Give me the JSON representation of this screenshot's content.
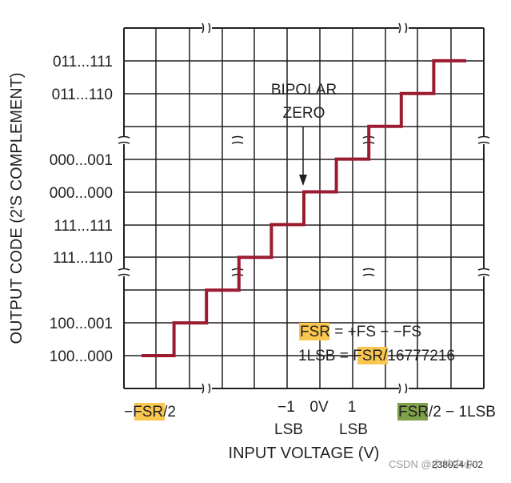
{
  "chart_data": {
    "type": "line",
    "subtype": "step",
    "title": "",
    "xlabel": "INPUT VOLTAGE (V)",
    "ylabel": "OUTPUT CODE (2'S COMPLEMENT)",
    "colors": {
      "transfer": "#9b1b30",
      "grid": "#231f20",
      "highlight": "#f9c74f",
      "highlight_green": "#7ea14a"
    },
    "y_tick_labels": [
      "100...000",
      "100...001",
      "111...110",
      "111...111",
      "000...000",
      "000...001",
      "011...110",
      "011...111"
    ],
    "x_tick_labels": {
      "left": {
        "highlight": "FSR",
        "prefix": "−",
        "suffix": "/2"
      },
      "minus_one_top": "−1",
      "minus_one_bottom": "LSB",
      "zero": "0V",
      "plus_one_top": "1",
      "plus_one_bottom": "LSB",
      "right": {
        "highlight": "FSR",
        "suffix": "/2 − 1LSB"
      }
    },
    "series": [
      {
        "values": [
          {
            "x": 0,
            "y": 0
          },
          {
            "x": 1,
            "y": 0
          },
          {
            "x": 1,
            "y": 1
          },
          {
            "x": 2,
            "y": 1
          },
          {
            "x": 2,
            "y": 2
          },
          {
            "x": 3,
            "y": 2
          },
          {
            "x": 3,
            "y": 3
          },
          {
            "x": 4,
            "y": 3
          },
          {
            "x": 4,
            "y": 4
          },
          {
            "x": 5,
            "y": 4
          },
          {
            "x": 5,
            "y": 5
          },
          {
            "x": 6,
            "y": 5
          },
          {
            "x": 6,
            "y": 6
          },
          {
            "x": 7,
            "y": 6
          },
          {
            "x": 7,
            "y": 7
          },
          {
            "x": 8,
            "y": 7
          },
          {
            "x": 8,
            "y": 8
          },
          {
            "x": 9,
            "y": 8
          },
          {
            "x": 9,
            "y": 9
          },
          {
            "x": 10,
            "y": 9
          }
        ]
      }
    ],
    "annotations": {
      "bipolar_line1": "BIPOLAR",
      "bipolar_line2": "ZERO",
      "fsr_eq": {
        "highlight": "FSR",
        "rest": " = +FS − −FS"
      },
      "lsb_eq": {
        "prefix": "1LSB = ",
        "highlight": "FSR",
        "suffix": "/16777216"
      },
      "figure_id": "238024 F02",
      "watermark": "CSDN @小林中心"
    },
    "grid": true
  }
}
